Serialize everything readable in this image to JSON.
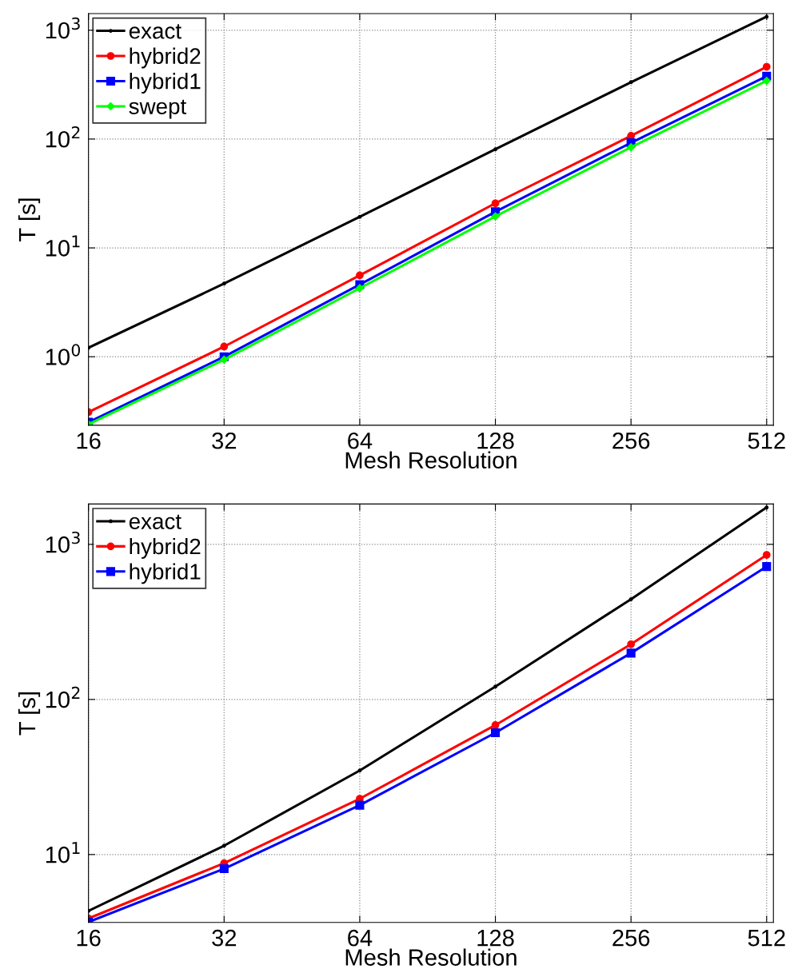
{
  "chart_data": [
    {
      "type": "line",
      "xlabel": "Mesh Resolution",
      "ylabel": "T [s]",
      "log": "xy",
      "grid": true,
      "legend": "top left",
      "line_style": "solid",
      "x": [
        16,
        32,
        64,
        128,
        256,
        512
      ],
      "xlim": [
        16,
        530
      ],
      "xticks": [
        16,
        32,
        64,
        128,
        256,
        512
      ],
      "ylim": [
        0.235,
        1420
      ],
      "yticks": [
        {
          "value": 1,
          "label": "10$^{0}$"
        },
        {
          "value": 10,
          "label": "10$^{1}$"
        },
        {
          "value": 100,
          "label": "10$^{2}$"
        },
        {
          "value": 1000,
          "label": "10$^{3}$"
        }
      ],
      "series": [
        {
          "name": "exact",
          "color": "#000000",
          "marker": "point",
          "values": [
            1.21,
            4.7,
            19.3,
            80.5,
            333,
            1330
          ]
        },
        {
          "name": "hybrid2",
          "color": "#ff0000",
          "marker": "circle",
          "values": [
            0.31,
            1.24,
            5.6,
            25.7,
            107,
            461
          ]
        },
        {
          "name": "hybrid1",
          "color": "#0000ff",
          "marker": "square",
          "values": [
            0.25,
            1.0,
            4.6,
            21.5,
            92.5,
            378
          ]
        },
        {
          "name": "swept",
          "color": "#00ff00",
          "marker": "diamond",
          "values": [
            0.24,
            0.94,
            4.26,
            19.5,
            84,
            343
          ]
        }
      ]
    },
    {
      "type": "line",
      "xlabel": "Mesh Resolution",
      "ylabel": "T [s]",
      "log": "xy",
      "grid": true,
      "legend": "top left",
      "line_style": "solid",
      "x": [
        16,
        32,
        64,
        128,
        256,
        512
      ],
      "xlim": [
        16,
        530
      ],
      "xticks": [
        16,
        32,
        64,
        128,
        256,
        512
      ],
      "ylim": [
        3.65,
        1820
      ],
      "yticks": [
        {
          "value": 10,
          "label": "10$^{1}$"
        },
        {
          "value": 100,
          "label": "10$^{2}$"
        },
        {
          "value": 1000,
          "label": "10$^{3}$"
        }
      ],
      "series": [
        {
          "name": "exact",
          "color": "#000000",
          "marker": "point",
          "values": [
            4.33,
            11.4,
            34.8,
            121,
            443,
            1730
          ]
        },
        {
          "name": "hybrid2",
          "color": "#ff0000",
          "marker": "circle",
          "values": [
            3.87,
            8.8,
            22.9,
            68.3,
            227,
            855
          ]
        },
        {
          "name": "hybrid1",
          "color": "#0000ff",
          "marker": "square",
          "values": [
            3.67,
            8.1,
            20.8,
            61,
            199,
            719
          ]
        }
      ]
    }
  ]
}
